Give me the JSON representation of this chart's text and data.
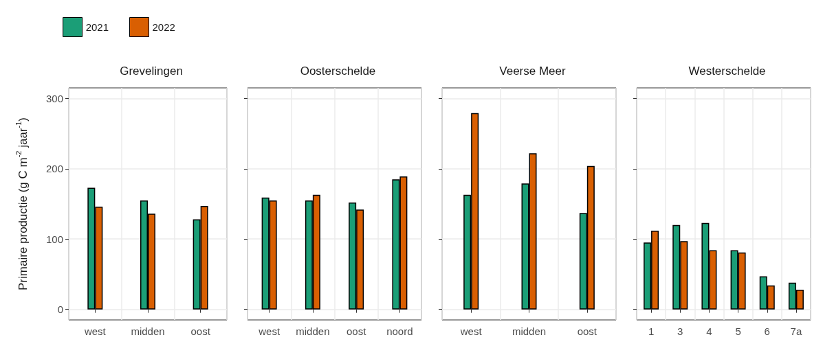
{
  "chart_data": [
    {
      "type": "bar",
      "title": "Grevelingen",
      "ylabel": "Primaire productie (g C m$^{-2}$ jaar$^{-1}$)",
      "categories": [
        "west",
        "midden",
        "oost"
      ],
      "series": [
        {
          "name": "2021",
          "color": "#1b9e77",
          "values": [
            173,
            155,
            128
          ]
        },
        {
          "name": "2022",
          "color": "#d95f02",
          "values": [
            146,
            136,
            147
          ]
        }
      ],
      "ylim": [
        -15,
        315
      ],
      "yticks": [
        0,
        100,
        200,
        300
      ],
      "grid": true,
      "legend": "top"
    },
    {
      "type": "bar",
      "title": "Oosterschelde",
      "categories": [
        "west",
        "midden",
        "oost",
        "noord"
      ],
      "series": [
        {
          "name": "2021",
          "color": "#1b9e77",
          "values": [
            159,
            155,
            152,
            185
          ]
        },
        {
          "name": "2022",
          "color": "#d95f02",
          "values": [
            155,
            163,
            142,
            189
          ]
        }
      ],
      "ylim": [
        -15,
        315
      ],
      "yticks": [
        0,
        100,
        200,
        300
      ],
      "grid": true,
      "tick_labels": "x"
    },
    {
      "type": "bar",
      "title": "Veerse Meer",
      "categories": [
        "west",
        "midden",
        "oost"
      ],
      "series": [
        {
          "name": "2021",
          "color": "#1b9e77",
          "values": [
            163,
            179,
            137
          ]
        },
        {
          "name": "2022",
          "color": "#d95f02",
          "values": [
            279,
            222,
            204
          ]
        }
      ],
      "ylim": [
        -15,
        315
      ],
      "yticks": [
        0,
        100,
        200,
        300
      ],
      "grid": true,
      "tick_labels": "x"
    },
    {
      "type": "bar",
      "title": "Westerschelde",
      "categories": [
        "1",
        "3",
        "4",
        "5",
        "6",
        "7a"
      ],
      "series": [
        {
          "name": "2021",
          "color": "#1b9e77",
          "values": [
            95,
            120,
            123,
            84,
            47,
            38
          ]
        },
        {
          "name": "2022",
          "color": "#d95f02",
          "values": [
            112,
            97,
            84,
            81,
            34,
            28
          ]
        }
      ],
      "ylim": [
        -15,
        315
      ],
      "yticks": [
        0,
        100,
        200,
        300
      ],
      "grid": true,
      "tick_labels": "x"
    }
  ]
}
